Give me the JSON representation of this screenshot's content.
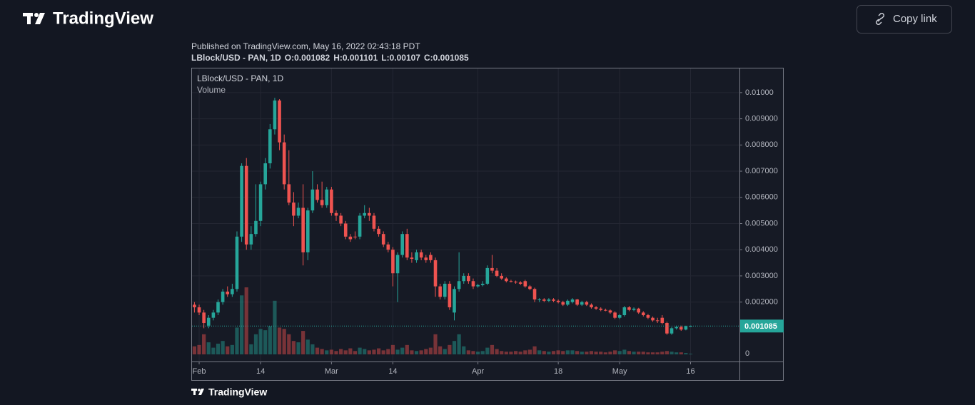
{
  "header": {
    "brand": "TradingView",
    "button": "Copy link"
  },
  "footer": {
    "brand": "TradingView"
  },
  "chart_data": {
    "type": "candlestick",
    "published": "Published on TradingView.com, May 16, 2022 02:43:18 PDT",
    "symbol": "LBlock/USD - PAN, 1D",
    "volume_label": "Volume",
    "ohlc_labels": [
      "O:",
      "H:",
      "L:",
      "C:"
    ],
    "up_color": "#26a69a",
    "down_color": "#ef5350",
    "ylim": [
      -0.00027,
      0.01095
    ],
    "yticks": [
      {
        "value": 0.002,
        "label": "0.002000"
      },
      {
        "value": 0.003,
        "label": "0.003000"
      },
      {
        "value": 0.004,
        "label": "0.004000"
      },
      {
        "value": 0.005,
        "label": "0.005000"
      },
      {
        "value": 0.006,
        "label": "0.006000"
      },
      {
        "value": 0.007,
        "label": "0.007000"
      },
      {
        "value": 0.008,
        "label": "0.008000"
      },
      {
        "value": 0.009,
        "label": "0.009000"
      },
      {
        "value": 0.01,
        "label": "0.01000"
      }
    ],
    "volume_ticks": [
      0
    ],
    "xticks": [
      {
        "value": "02-01",
        "label": "Feb"
      },
      {
        "value": "02-14",
        "label": "14"
      },
      {
        "value": "03-01",
        "label": "Mar"
      },
      {
        "value": "03-14",
        "label": "14"
      },
      {
        "value": "04-01",
        "label": "Apr"
      },
      {
        "value": "04-18",
        "label": "18"
      },
      {
        "value": "05-01",
        "label": "May"
      },
      {
        "value": "05-16",
        "label": "16"
      }
    ],
    "grid": true,
    "x": [
      "01-31",
      "02-01",
      "02-02",
      "02-03",
      "02-04",
      "02-05",
      "02-06",
      "02-07",
      "02-08",
      "02-09",
      "02-10",
      "02-11",
      "02-12",
      "02-13",
      "02-14",
      "02-15",
      "02-16",
      "02-17",
      "02-18",
      "02-19",
      "02-20",
      "02-21",
      "02-22",
      "02-23",
      "02-24",
      "02-25",
      "02-26",
      "02-27",
      "02-28",
      "03-01",
      "03-02",
      "03-03",
      "03-04",
      "03-05",
      "03-06",
      "03-07",
      "03-08",
      "03-09",
      "03-10",
      "03-11",
      "03-12",
      "03-13",
      "03-14",
      "03-15",
      "03-16",
      "03-17",
      "03-18",
      "03-19",
      "03-20",
      "03-21",
      "03-22",
      "03-23",
      "03-24",
      "03-25",
      "03-26",
      "03-27",
      "03-28",
      "03-29",
      "03-30",
      "03-31",
      "04-01",
      "04-02",
      "04-03",
      "04-04",
      "04-05",
      "04-06",
      "04-07",
      "04-08",
      "04-09",
      "04-10",
      "04-11",
      "04-12",
      "04-13",
      "04-14",
      "04-15",
      "04-16",
      "04-17",
      "04-18",
      "04-19",
      "04-20",
      "04-21",
      "04-22",
      "04-23",
      "04-24",
      "04-25",
      "04-26",
      "04-27",
      "04-28",
      "04-29",
      "04-30",
      "05-01",
      "05-02",
      "05-03",
      "05-04",
      "05-05",
      "05-06",
      "05-07",
      "05-08",
      "05-09",
      "05-10",
      "05-11",
      "05-12",
      "05-13",
      "05-14",
      "05-15",
      "05-16"
    ],
    "open": [
      0.0019,
      0.0018,
      0.0016,
      0.0011,
      0.0014,
      0.0016,
      0.002,
      0.0024,
      0.0023,
      0.0025,
      0.0045,
      0.0072,
      0.0042,
      0.0046,
      0.0051,
      0.0065,
      0.0073,
      0.0086,
      0.0097,
      0.0081,
      0.0065,
      0.0058,
      0.0053,
      0.0056,
      0.0039,
      0.0055,
      0.0063,
      0.0059,
      0.0057,
      0.0063,
      0.0054,
      0.0053,
      0.005,
      0.0045,
      0.0045,
      0.0045,
      0.0053,
      0.0054,
      0.0053,
      0.0048,
      0.0046,
      0.0042,
      0.004,
      0.0031,
      0.0038,
      0.0046,
      0.0037,
      0.0036,
      0.0039,
      0.0037,
      0.0038,
      0.0036,
      0.0026,
      0.0022,
      0.0027,
      0.0016,
      0.0025,
      0.0028,
      0.003,
      0.0028,
      0.0026,
      0.00265,
      0.0027,
      0.0033,
      0.0032,
      0.003,
      0.0029,
      0.0028,
      0.00278,
      0.00275,
      0.0028,
      0.0026,
      0.0025,
      0.00208,
      0.0021,
      0.00205,
      0.0021,
      0.00205,
      0.002,
      0.0019,
      0.002,
      0.0021,
      0.0019,
      0.002,
      0.0019,
      0.0018,
      0.00175,
      0.0017,
      0.00168,
      0.0016,
      0.0014,
      0.0015,
      0.0018,
      0.0017,
      0.00175,
      0.0016,
      0.0015,
      0.0014,
      0.0013,
      0.0014,
      0.0012,
      0.0008,
      0.001,
      0.00105,
      0.00095,
      0.001082
    ],
    "high": [
      0.002,
      0.0019,
      0.0017,
      0.0015,
      0.0017,
      0.0021,
      0.0025,
      0.0026,
      0.0027,
      0.0047,
      0.0073,
      0.0075,
      0.0049,
      0.0065,
      0.0066,
      0.0075,
      0.0088,
      0.0098,
      0.00975,
      0.0084,
      0.0078,
      0.0062,
      0.0058,
      0.0065,
      0.0056,
      0.007,
      0.0065,
      0.0066,
      0.0064,
      0.0064,
      0.0055,
      0.0054,
      0.0051,
      0.0046,
      0.0047,
      0.0054,
      0.0057,
      0.0056,
      0.0054,
      0.0049,
      0.0047,
      0.0043,
      0.0041,
      0.0039,
      0.0047,
      0.0048,
      0.0039,
      0.004,
      0.004,
      0.0038,
      0.0039,
      0.0037,
      0.0027,
      0.0028,
      0.0028,
      0.0026,
      0.0039,
      0.0031,
      0.0031,
      0.0029,
      0.0027,
      0.0028,
      0.0034,
      0.0038,
      0.0033,
      0.0031,
      0.00295,
      0.00285,
      0.00282,
      0.0028,
      0.00285,
      0.00265,
      0.00255,
      0.00215,
      0.00215,
      0.00215,
      0.00215,
      0.0021,
      0.00205,
      0.0021,
      0.00215,
      0.00212,
      0.00205,
      0.00205,
      0.00195,
      0.00185,
      0.0018,
      0.00175,
      0.00172,
      0.00165,
      0.00155,
      0.00185,
      0.00185,
      0.0018,
      0.00178,
      0.00165,
      0.00155,
      0.00145,
      0.0014,
      0.0015,
      0.00125,
      0.00105,
      0.0011,
      0.0011,
      0.0011,
      0.001101
    ],
    "low": [
      0.0016,
      0.0015,
      0.001,
      0.001,
      0.0013,
      0.0015,
      0.0019,
      0.0022,
      0.0022,
      0.0024,
      0.0043,
      0.004,
      0.004,
      0.0045,
      0.0049,
      0.0063,
      0.0071,
      0.0084,
      0.0078,
      0.0063,
      0.0057,
      0.0049,
      0.0052,
      0.0034,
      0.0036,
      0.0054,
      0.0058,
      0.0056,
      0.0056,
      0.0053,
      0.0051,
      0.0049,
      0.0044,
      0.0043,
      0.0044,
      0.0044,
      0.0052,
      0.0051,
      0.0047,
      0.0045,
      0.0041,
      0.0039,
      0.0026,
      0.002,
      0.0037,
      0.0036,
      0.0035,
      0.0035,
      0.0036,
      0.0035,
      0.0035,
      0.0022,
      0.0021,
      0.0021,
      0.0017,
      0.0013,
      0.0024,
      0.0027,
      0.0027,
      0.0025,
      0.00255,
      0.0026,
      0.00265,
      0.0031,
      0.00295,
      0.00285,
      0.00275,
      0.00275,
      0.0027,
      0.00265,
      0.00255,
      0.00245,
      0.002,
      0.002,
      0.002,
      0.002,
      0.002,
      0.00195,
      0.00185,
      0.00185,
      0.00195,
      0.00185,
      0.00185,
      0.00185,
      0.00175,
      0.0017,
      0.00165,
      0.00165,
      0.00155,
      0.00135,
      0.00135,
      0.00145,
      0.00165,
      0.00165,
      0.00155,
      0.00145,
      0.00135,
      0.00125,
      0.0012,
      0.00115,
      0.00075,
      0.00075,
      0.00095,
      0.0009,
      0.00092,
      0.00107
    ],
    "close": [
      0.0018,
      0.0016,
      0.0012,
      0.0014,
      0.0016,
      0.002,
      0.0024,
      0.0023,
      0.0025,
      0.0045,
      0.0072,
      0.0042,
      0.0046,
      0.0051,
      0.0065,
      0.0073,
      0.0086,
      0.0097,
      0.0081,
      0.0065,
      0.0058,
      0.0053,
      0.0056,
      0.0039,
      0.0055,
      0.0063,
      0.0059,
      0.0057,
      0.0063,
      0.0054,
      0.0053,
      0.005,
      0.0045,
      0.0044,
      0.00448,
      0.0053,
      0.0054,
      0.0053,
      0.0048,
      0.0046,
      0.0042,
      0.004,
      0.0031,
      0.0038,
      0.0046,
      0.0037,
      0.00365,
      0.0039,
      0.0037,
      0.0036,
      0.0036,
      0.0026,
      0.0022,
      0.0027,
      0.0018,
      0.0025,
      0.0028,
      0.003,
      0.0028,
      0.0026,
      0.00265,
      0.0027,
      0.0033,
      0.0032,
      0.003,
      0.0029,
      0.0028,
      0.00278,
      0.00275,
      0.0027,
      0.0026,
      0.0025,
      0.0021,
      0.0021,
      0.00205,
      0.0021,
      0.00205,
      0.002,
      0.0019,
      0.00205,
      0.0021,
      0.0019,
      0.002,
      0.0019,
      0.0018,
      0.00175,
      0.0017,
      0.00168,
      0.0016,
      0.0014,
      0.0015,
      0.0018,
      0.0017,
      0.00175,
      0.0016,
      0.0015,
      0.0014,
      0.0013,
      0.00128,
      0.0012,
      0.0008,
      0.001,
      0.00105,
      0.00095,
      0.00108,
      0.001085
    ],
    "volume": [
      12,
      14,
      30,
      18,
      10,
      16,
      20,
      12,
      14,
      40,
      88,
      100,
      15,
      30,
      38,
      36,
      42,
      80,
      40,
      38,
      30,
      20,
      18,
      35,
      22,
      15,
      10,
      8,
      6,
      7,
      5,
      8,
      6,
      9,
      5,
      10,
      8,
      6,
      7,
      9,
      6,
      8,
      14,
      7,
      10,
      14,
      6,
      5,
      6,
      8,
      10,
      30,
      12,
      8,
      14,
      20,
      30,
      12,
      6,
      5,
      4,
      5,
      10,
      14,
      8,
      5,
      4,
      4,
      5,
      4,
      6,
      7,
      12,
      6,
      5,
      4,
      5,
      6,
      5,
      6,
      6,
      5,
      4,
      4,
      5,
      4,
      4,
      3,
      4,
      6,
      5,
      7,
      5,
      4,
      4,
      4,
      3,
      3,
      3,
      4,
      5,
      4,
      3,
      3,
      2,
      1
    ]
  }
}
